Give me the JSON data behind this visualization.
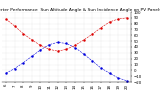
{
  "title": "Solar PV/Inverter Performance  Sun Altitude Angle & Sun Incidence Angle on PV Panels",
  "bg_color": "#ffffff",
  "grid_color": "#c8c8c8",
  "hours": [
    6,
    7,
    8,
    9,
    10,
    11,
    12,
    13,
    14,
    15,
    16,
    17,
    18,
    19,
    20
  ],
  "sun_altitude": [
    -5,
    3,
    13,
    24,
    35,
    44,
    48,
    46,
    39,
    28,
    16,
    4,
    -5,
    -13,
    -18
  ],
  "sun_incidence": [
    88,
    76,
    63,
    52,
    43,
    36,
    33,
    36,
    43,
    52,
    62,
    73,
    83,
    88,
    90
  ],
  "altitude_color": "#0000dd",
  "incidence_color": "#dd0000",
  "ylim_min": -20,
  "ylim_max": 100,
  "xlim_min": 5.5,
  "xlim_max": 20.5,
  "title_fontsize": 3.2,
  "tick_fontsize": 2.8,
  "dot_size": 1.5,
  "linewidth": 0.4
}
